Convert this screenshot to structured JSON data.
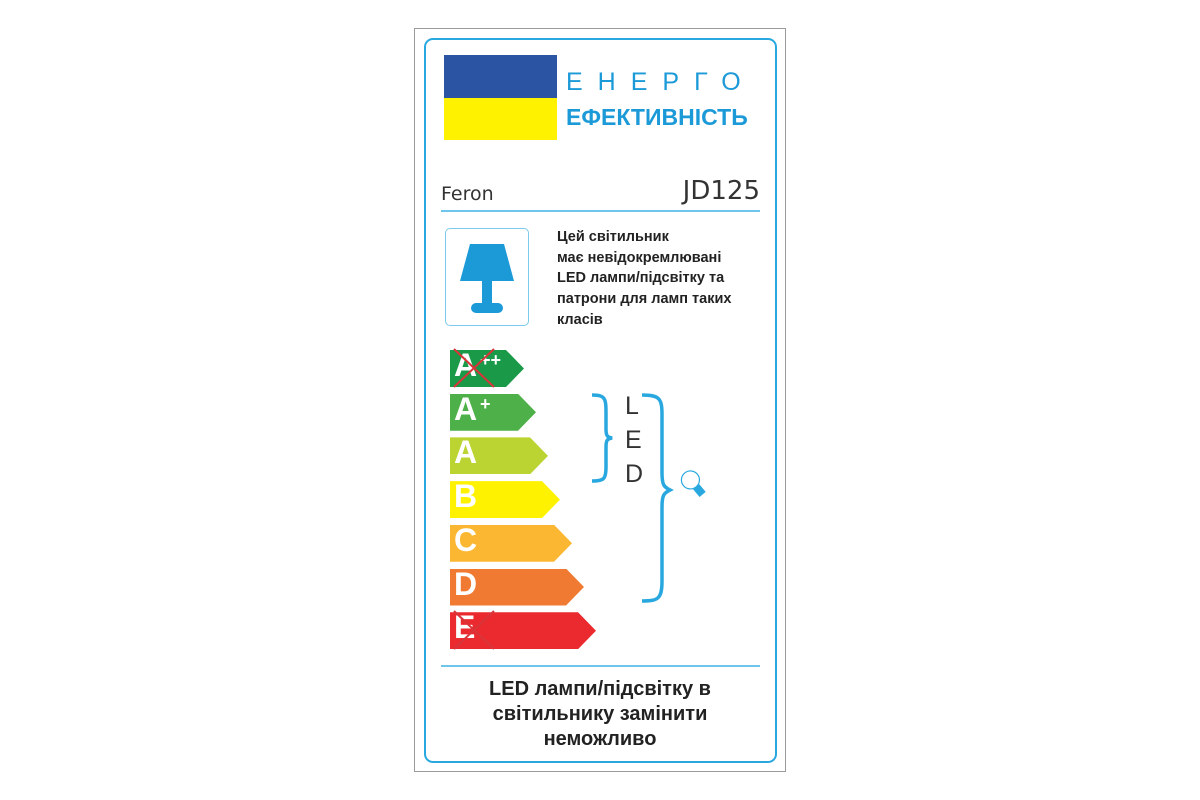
{
  "header": {
    "title_line1": "ЕНЕРГО",
    "title_line2": "ЕФЕКТИВНІСТЬ",
    "flag_colors": [
      "#2b55a3",
      "#fff200"
    ]
  },
  "product": {
    "brand": "Feron",
    "model": "JD125"
  },
  "description": [
    "Цей світильник",
    "має невідокремлювані",
    "LED лампи/підсвітку та",
    "патрони для ламп таких",
    "класів"
  ],
  "classes": [
    {
      "label": "A",
      "sup": "++",
      "color": "#1a9a48",
      "crossed": true
    },
    {
      "label": "A",
      "sup": "+",
      "color": "#4db048",
      "crossed": false
    },
    {
      "label": "A",
      "sup": "",
      "color": "#bcd432",
      "crossed": false
    },
    {
      "label": "B",
      "sup": "",
      "color": "#fff200",
      "crossed": false
    },
    {
      "label": "C",
      "sup": "",
      "color": "#fbb731",
      "crossed": false
    },
    {
      "label": "D",
      "sup": "",
      "color": "#f07a32",
      "crossed": false
    },
    {
      "label": "E",
      "sup": "",
      "color": "#ea2a2f",
      "crossed": true
    }
  ],
  "led_label": [
    "L",
    "E",
    "D"
  ],
  "footer": [
    "LED лампи/підсвітку в",
    "світильнику замінити",
    "неможливо"
  ],
  "accent": "#29a8e0"
}
